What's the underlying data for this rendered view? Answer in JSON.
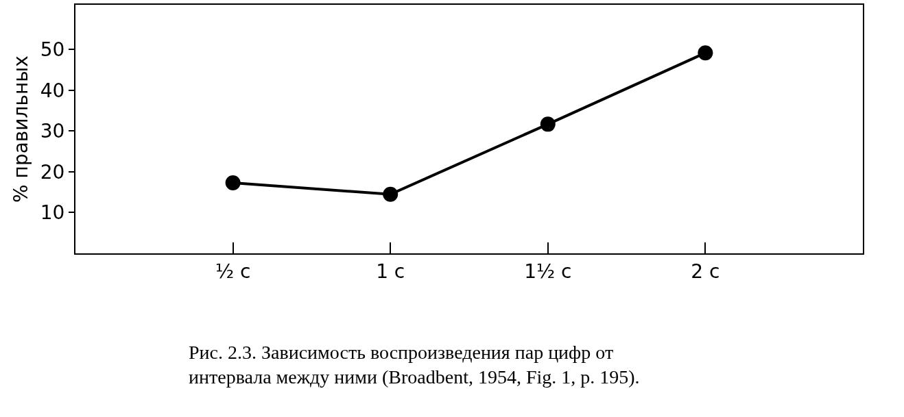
{
  "chart_data": {
    "type": "line",
    "categories": [
      "½ с",
      "1 с",
      "1½ с",
      "2 с"
    ],
    "series": [
      {
        "color": "#000000",
        "values": [
          17.3,
          14.5,
          31.7,
          49.2
        ]
      }
    ],
    "ylabel": "% правильных",
    "ylim": [
      0,
      61
    ],
    "yticks": [
      10,
      20,
      30,
      40,
      50
    ],
    "marker": "circle",
    "line_style": "solid",
    "annotations": [
      "Рис. 2.3. Зависимость воспроизведения пар цифр от\nинтервала между ними (Broadbent, 1954, Fig. 1, p. 195)."
    ]
  }
}
